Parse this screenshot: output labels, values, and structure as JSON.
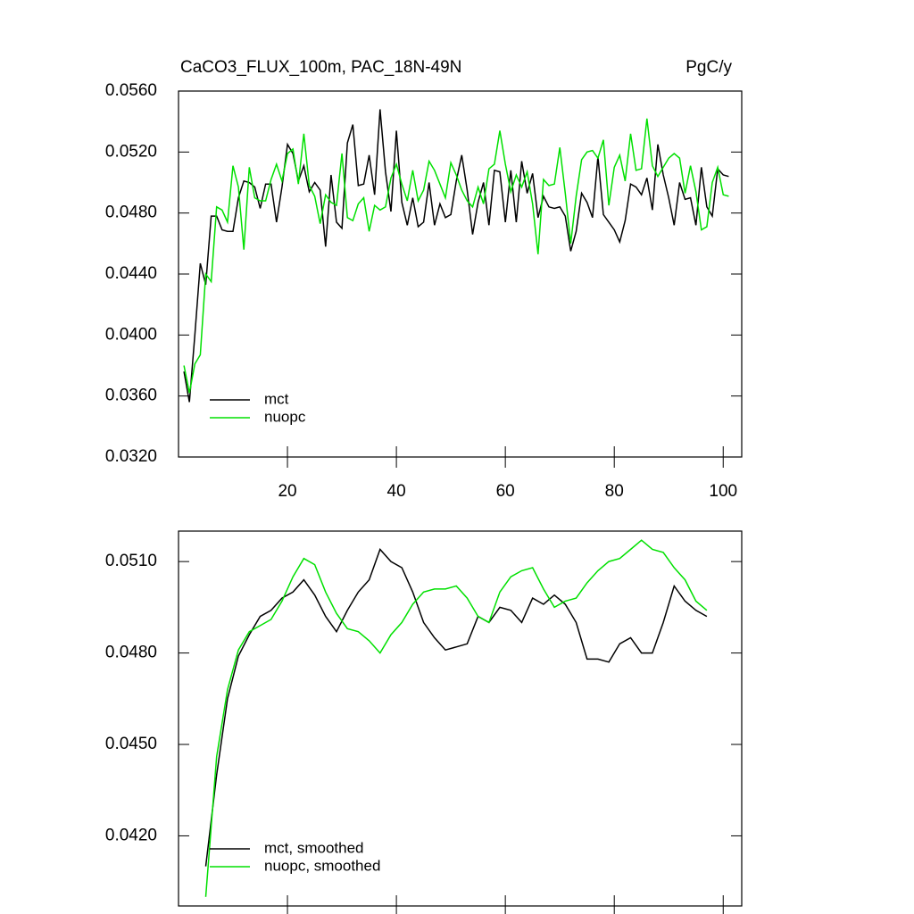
{
  "chart_data": [
    {
      "type": "line",
      "title": "CaCO3_FLUX_100m, PAC_18N-49N",
      "units": "PgC/y",
      "x": [
        1,
        2,
        3,
        4,
        5,
        6,
        7,
        8,
        9,
        10,
        11,
        12,
        13,
        14,
        15,
        16,
        17,
        18,
        19,
        20,
        21,
        22,
        23,
        24,
        25,
        26,
        27,
        28,
        29,
        30,
        31,
        32,
        33,
        34,
        35,
        36,
        37,
        38,
        39,
        40,
        41,
        42,
        43,
        44,
        45,
        46,
        47,
        48,
        49,
        50,
        51,
        52,
        53,
        54,
        55,
        56,
        57,
        58,
        59,
        60,
        61,
        62,
        63,
        64,
        65,
        66,
        67,
        68,
        69,
        70,
        71,
        72,
        73,
        74,
        75,
        76,
        77,
        78,
        79,
        80,
        81,
        82,
        83,
        84,
        85,
        86,
        87,
        88,
        89,
        90,
        91,
        92,
        93,
        94,
        95,
        96,
        97,
        98,
        99,
        100,
        101
      ],
      "series": [
        {
          "name": "mct",
          "color": "#000000",
          "values": [
            0.0376,
            0.0356,
            0.04,
            0.0447,
            0.0433,
            0.0478,
            0.0478,
            0.0469,
            0.0468,
            0.0468,
            0.049,
            0.0501,
            0.05,
            0.0497,
            0.0483,
            0.0499,
            0.0499,
            0.0474,
            0.0497,
            0.0525,
            0.0519,
            0.0501,
            0.0511,
            0.0494,
            0.05,
            0.0495,
            0.0458,
            0.0505,
            0.0474,
            0.047,
            0.0526,
            0.0538,
            0.0498,
            0.0499,
            0.0518,
            0.0492,
            0.0548,
            0.0507,
            0.0481,
            0.0534,
            0.0487,
            0.0472,
            0.049,
            0.0471,
            0.0474,
            0.05,
            0.0472,
            0.0486,
            0.0477,
            0.0479,
            0.0501,
            0.0518,
            0.0495,
            0.0466,
            0.0487,
            0.05,
            0.0472,
            0.0508,
            0.0507,
            0.0474,
            0.0508,
            0.0474,
            0.0514,
            0.0493,
            0.0506,
            0.0477,
            0.0491,
            0.0484,
            0.0483,
            0.0484,
            0.0478,
            0.0455,
            0.0468,
            0.0493,
            0.0487,
            0.0477,
            0.0517,
            0.0479,
            0.0474,
            0.0469,
            0.0461,
            0.0475,
            0.0499,
            0.0497,
            0.0492,
            0.0503,
            0.0482,
            0.0525,
            0.0505,
            0.049,
            0.0472,
            0.05,
            0.0489,
            0.049,
            0.0472,
            0.051,
            0.0484,
            0.0478,
            0.0509,
            0.0505,
            0.0504
          ]
        },
        {
          "name": "nuopc",
          "color": "#00e000",
          "values": [
            0.038,
            0.0362,
            0.0381,
            0.0387,
            0.044,
            0.0435,
            0.0484,
            0.0482,
            0.0474,
            0.0511,
            0.0497,
            0.0456,
            0.051,
            0.049,
            0.0488,
            0.0488,
            0.0502,
            0.0512,
            0.0501,
            0.0519,
            0.0522,
            0.0499,
            0.0532,
            0.0498,
            0.0491,
            0.0473,
            0.0492,
            0.0487,
            0.0485,
            0.0519,
            0.0477,
            0.0475,
            0.0486,
            0.049,
            0.0468,
            0.0485,
            0.0482,
            0.0484,
            0.0503,
            0.0512,
            0.0499,
            0.0488,
            0.0508,
            0.0488,
            0.0495,
            0.0514,
            0.0508,
            0.0499,
            0.049,
            0.0513,
            0.0505,
            0.0495,
            0.0488,
            0.0484,
            0.0497,
            0.0486,
            0.0509,
            0.0512,
            0.0534,
            0.0512,
            0.0494,
            0.0505,
            0.0497,
            0.0507,
            0.0486,
            0.0453,
            0.0502,
            0.0498,
            0.0499,
            0.0523,
            0.0493,
            0.046,
            0.0491,
            0.0515,
            0.052,
            0.0521,
            0.0516,
            0.0528,
            0.0485,
            0.051,
            0.0518,
            0.0501,
            0.0532,
            0.0508,
            0.0509,
            0.0542,
            0.0511,
            0.0504,
            0.051,
            0.0516,
            0.0519,
            0.0516,
            0.0493,
            0.0511,
            0.0494,
            0.0469,
            0.0471,
            0.05,
            0.051,
            0.0492,
            0.0491
          ]
        }
      ],
      "xlim": [
        0,
        103.4
      ],
      "xticks": [
        20,
        40,
        60,
        80,
        100
      ],
      "xtick_labels": true,
      "ylim": [
        0.032,
        0.056
      ],
      "yticks": [
        {
          "value": 0.032,
          "label": "0.0320"
        },
        {
          "value": 0.036,
          "label": "0.0360"
        },
        {
          "value": 0.04,
          "label": "0.0400"
        },
        {
          "value": 0.044,
          "label": "0.0440"
        },
        {
          "value": 0.048,
          "label": "0.0480"
        },
        {
          "value": 0.052,
          "label": "0.0520"
        },
        {
          "value": 0.056,
          "label": "0.0560"
        }
      ],
      "legend": "lower left"
    },
    {
      "type": "line",
      "x": [
        5,
        7,
        9,
        11,
        13,
        15,
        17,
        19,
        21,
        23,
        25,
        27,
        29,
        31,
        33,
        35,
        37,
        39,
        41,
        43,
        45,
        47,
        49,
        51,
        53,
        55,
        57,
        59,
        61,
        63,
        65,
        67,
        69,
        71,
        73,
        75,
        77,
        79,
        81,
        83,
        85,
        87,
        89,
        91,
        93,
        95,
        97
      ],
      "series": [
        {
          "name": "mct, smoothed",
          "color": "#000000",
          "values": [
            0.041,
            0.044,
            0.0465,
            0.0479,
            0.0486,
            0.0492,
            0.0494,
            0.0498,
            0.05,
            0.0504,
            0.0499,
            0.0492,
            0.0487,
            0.0494,
            0.05,
            0.0504,
            0.0514,
            0.051,
            0.0508,
            0.05,
            0.049,
            0.0485,
            0.0481,
            0.0482,
            0.0483,
            0.0492,
            0.049,
            0.0495,
            0.0494,
            0.049,
            0.0498,
            0.0496,
            0.0499,
            0.0496,
            0.049,
            0.0478,
            0.0478,
            0.0477,
            0.0483,
            0.0485,
            0.048,
            0.048,
            0.049,
            0.0502,
            0.0497,
            0.0494,
            0.0492
          ]
        },
        {
          "name": "nuopc, smoothed",
          "color": "#00e000",
          "values": [
            0.04,
            0.0446,
            0.0468,
            0.0481,
            0.0487,
            0.0489,
            0.0491,
            0.0497,
            0.0505,
            0.0511,
            0.0509,
            0.05,
            0.0493,
            0.0488,
            0.0487,
            0.0484,
            0.048,
            0.0486,
            0.049,
            0.0496,
            0.05,
            0.0501,
            0.0501,
            0.0502,
            0.0498,
            0.0492,
            0.049,
            0.05,
            0.0505,
            0.0507,
            0.0508,
            0.0501,
            0.0495,
            0.0497,
            0.0498,
            0.0503,
            0.0507,
            0.051,
            0.0511,
            0.0514,
            0.0517,
            0.0514,
            0.0513,
            0.0508,
            0.0504,
            0.0497,
            0.0494
          ]
        }
      ],
      "xlim": [
        0,
        103.4
      ],
      "xticks": [
        20,
        40,
        60,
        80,
        100
      ],
      "xtick_labels": false,
      "ylim": [
        0.0397,
        0.052
      ],
      "yticks": [
        {
          "value": 0.042,
          "label": "0.0420"
        },
        {
          "value": 0.045,
          "label": "0.0450"
        },
        {
          "value": 0.048,
          "label": "0.0480"
        },
        {
          "value": 0.051,
          "label": "0.0510"
        }
      ],
      "legend": "lower left"
    }
  ]
}
